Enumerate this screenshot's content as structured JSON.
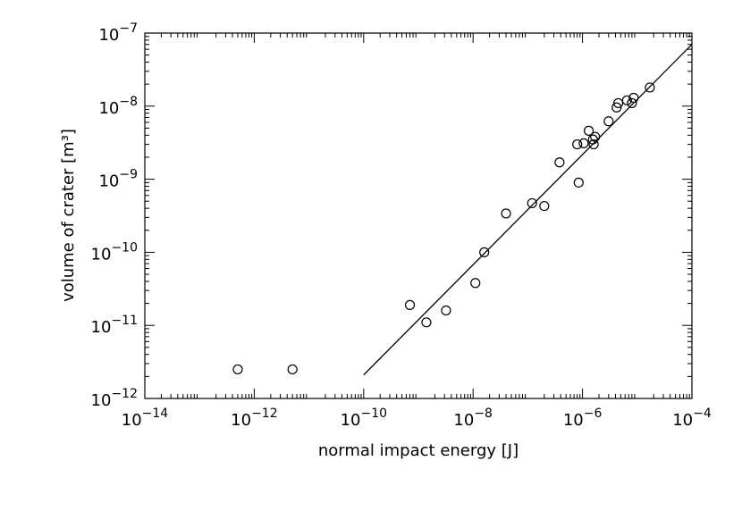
{
  "chart_data": {
    "type": "scatter",
    "title": "",
    "xlabel": "normal impact energy [J]",
    "ylabel": "volume of crater [m³]",
    "x_scale": "log",
    "y_scale": "log",
    "xlim": [
      1e-14,
      0.0001
    ],
    "ylim": [
      1e-12,
      1e-07
    ],
    "x_ticks": [
      {
        "value": 1e-14,
        "base": "10",
        "exp": "−14"
      },
      {
        "value": 1e-12,
        "base": "10",
        "exp": "−12"
      },
      {
        "value": 1e-10,
        "base": "10",
        "exp": "−10"
      },
      {
        "value": 1e-08,
        "base": "10",
        "exp": "−8"
      },
      {
        "value": 1e-06,
        "base": "10",
        "exp": "−6"
      },
      {
        "value": 0.0001,
        "base": "10",
        "exp": "−4"
      }
    ],
    "y_ticks": [
      {
        "value": 1e-12,
        "base": "10",
        "exp": "−12"
      },
      {
        "value": 1e-11,
        "base": "10",
        "exp": "−11"
      },
      {
        "value": 1e-10,
        "base": "10",
        "exp": "−10"
      },
      {
        "value": 1e-09,
        "base": "10",
        "exp": "−9"
      },
      {
        "value": 1e-08,
        "base": "10",
        "exp": "−8"
      },
      {
        "value": 1e-07,
        "base": "10",
        "exp": "−7"
      }
    ],
    "grid": false,
    "legend": "none",
    "color": "#000000",
    "series": [
      {
        "type": "scatter",
        "marker": "open-circle",
        "x": [
          5e-13,
          5e-12,
          7e-10,
          1.4e-09,
          3.2e-09,
          1.1e-08,
          1.6e-08,
          4e-08,
          1.2e-07,
          2e-07,
          3.8e-07,
          8.5e-07,
          8e-07,
          1.05e-06,
          1.3e-06,
          1.55e-06,
          1.6e-06,
          1.7e-06,
          3e-06,
          4.2e-06,
          4.5e-06,
          6.5e-06,
          8e-06,
          8.6e-06,
          1.7e-05
        ],
        "y": [
          2.5e-12,
          2.5e-12,
          1.9e-11,
          1.1e-11,
          1.6e-11,
          3.8e-11,
          1e-10,
          3.4e-10,
          4.7e-10,
          4.3e-10,
          1.7e-09,
          9e-10,
          3e-09,
          3.1e-09,
          4.6e-09,
          3.5e-09,
          3e-09,
          3.8e-09,
          6.2e-09,
          9.6e-09,
          1.1e-08,
          1.2e-08,
          1.1e-08,
          1.3e-08,
          1.8e-08
        ]
      },
      {
        "type": "line",
        "x": [
          1e-10,
          0.0001
        ],
        "y": [
          2.1e-12,
          7e-08
        ]
      }
    ]
  }
}
